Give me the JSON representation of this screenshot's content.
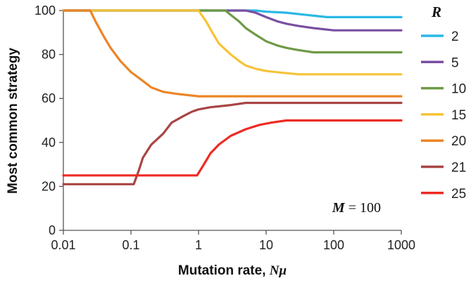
{
  "chart_data": {
    "type": "line",
    "title": "",
    "xlabel": "Mutation rate, ",
    "xlabel_var": "Nμ",
    "ylabel": "Most common strategy",
    "x_scale": "log",
    "xlim": [
      0.01,
      1000
    ],
    "ylim": [
      0,
      100
    ],
    "x_ticks": [
      0.01,
      0.1,
      1,
      10,
      100,
      1000
    ],
    "x_tick_labels": [
      "0.01",
      "0.1",
      "1",
      "10",
      "100",
      "1000"
    ],
    "y_ticks": [
      0,
      20,
      40,
      60,
      80,
      100
    ],
    "y_tick_labels": [
      "0",
      "20",
      "40",
      "60",
      "80",
      "100"
    ],
    "grid": false,
    "legend_title": "R",
    "legend_position": "right",
    "annotation": {
      "var": "M",
      "text": " = 100"
    },
    "series": [
      {
        "name": "2",
        "color": "#29b8e5",
        "points": [
          [
            0.01,
            100
          ],
          [
            7,
            100
          ],
          [
            10,
            99.5
          ],
          [
            20,
            99
          ],
          [
            40,
            98
          ],
          [
            80,
            97
          ],
          [
            1000,
            97
          ]
        ]
      },
      {
        "name": "5",
        "color": "#7a4fa2",
        "points": [
          [
            0.01,
            100
          ],
          [
            5,
            100
          ],
          [
            7,
            99
          ],
          [
            10,
            97
          ],
          [
            15,
            95
          ],
          [
            20,
            94
          ],
          [
            30,
            93
          ],
          [
            50,
            92
          ],
          [
            100,
            91
          ],
          [
            1000,
            91
          ]
        ]
      },
      {
        "name": "10",
        "color": "#6e9a45",
        "points": [
          [
            0.01,
            100
          ],
          [
            2.5,
            100
          ],
          [
            3,
            98
          ],
          [
            4,
            95
          ],
          [
            5,
            92
          ],
          [
            7,
            89
          ],
          [
            10,
            86
          ],
          [
            15,
            84
          ],
          [
            20,
            83
          ],
          [
            30,
            82
          ],
          [
            50,
            81
          ],
          [
            100,
            81
          ],
          [
            1000,
            81
          ]
        ]
      },
      {
        "name": "15",
        "color": "#f6c338",
        "points": [
          [
            0.01,
            100
          ],
          [
            1,
            100
          ],
          [
            1.3,
            95
          ],
          [
            1.6,
            90
          ],
          [
            2,
            85
          ],
          [
            3,
            80
          ],
          [
            4,
            77
          ],
          [
            5,
            75
          ],
          [
            7,
            73.5
          ],
          [
            10,
            72.5
          ],
          [
            20,
            71.5
          ],
          [
            30,
            71
          ],
          [
            1000,
            71
          ]
        ]
      },
      {
        "name": "20",
        "color": "#ec8526",
        "points": [
          [
            0.01,
            100
          ],
          [
            0.025,
            100
          ],
          [
            0.03,
            95
          ],
          [
            0.04,
            88
          ],
          [
            0.05,
            83
          ],
          [
            0.07,
            77
          ],
          [
            0.1,
            72
          ],
          [
            0.15,
            68
          ],
          [
            0.2,
            65
          ],
          [
            0.3,
            63
          ],
          [
            0.5,
            62
          ],
          [
            1,
            61
          ],
          [
            1000,
            61
          ]
        ]
      },
      {
        "name": "21",
        "color": "#a84544",
        "points": [
          [
            0.01,
            21
          ],
          [
            0.11,
            21
          ],
          [
            0.13,
            27
          ],
          [
            0.15,
            33
          ],
          [
            0.2,
            39
          ],
          [
            0.3,
            44
          ],
          [
            0.4,
            49
          ],
          [
            0.6,
            52
          ],
          [
            0.8,
            54
          ],
          [
            1,
            55
          ],
          [
            1.5,
            56
          ],
          [
            3,
            57
          ],
          [
            5,
            58
          ],
          [
            1000,
            58
          ]
        ]
      },
      {
        "name": "25",
        "color": "#ee2b24",
        "points": [
          [
            0.01,
            25
          ],
          [
            0.95,
            25
          ],
          [
            1.2,
            30
          ],
          [
            1.5,
            35
          ],
          [
            2,
            39
          ],
          [
            3,
            43
          ],
          [
            5,
            46
          ],
          [
            8,
            48
          ],
          [
            12,
            49
          ],
          [
            20,
            50
          ],
          [
            1000,
            50
          ]
        ]
      }
    ]
  }
}
